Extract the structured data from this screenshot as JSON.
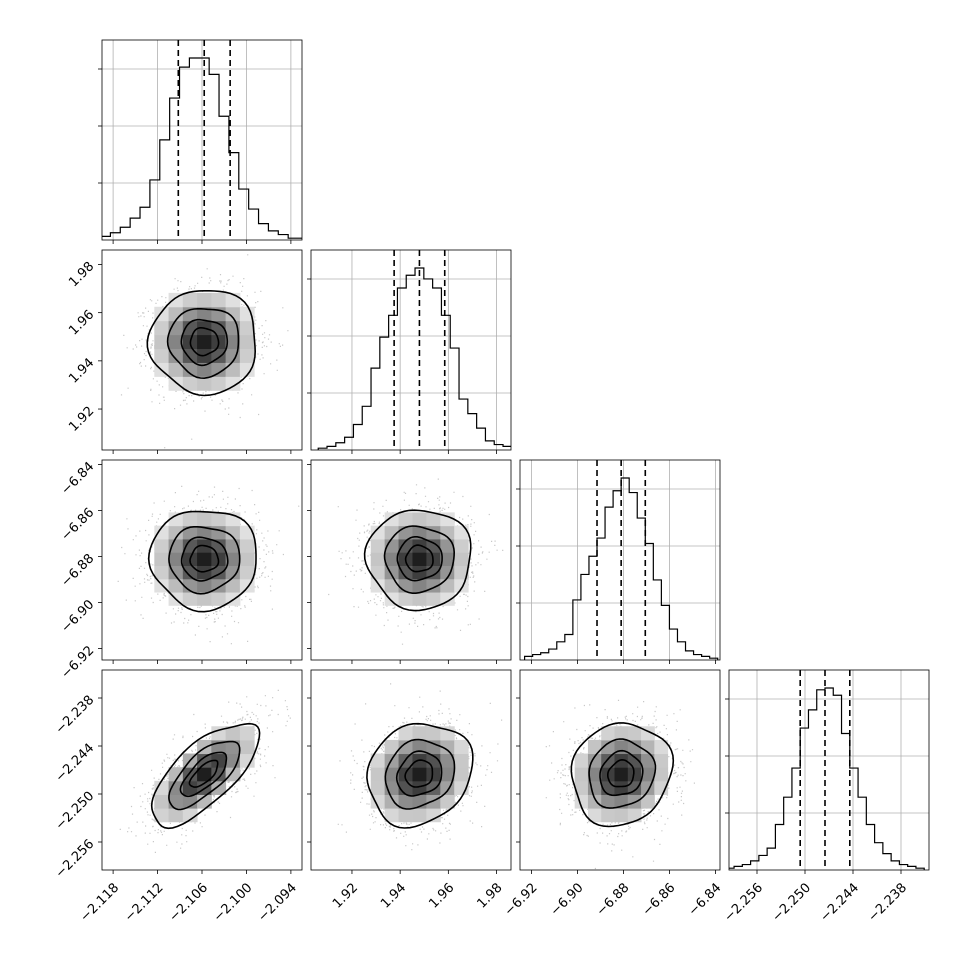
{
  "chart_data": {
    "type": "corner",
    "params": [
      {
        "xlim": [
          -2.1195,
          -2.0925
        ],
        "ticks": [
          -2.118,
          -2.112,
          -2.106,
          -2.1,
          -2.094
        ],
        "tick_labels": [
          "−2.118",
          "−2.112",
          "−2.106",
          "−2.100",
          "−2.094"
        ],
        "mean": -2.1057,
        "std": 0.0035,
        "quantiles": [
          -2.1092,
          -2.1057,
          -2.1022
        ],
        "hist": [
          2,
          4,
          7,
          12,
          18,
          33,
          55,
          78,
          95,
          100,
          100,
          91,
          68,
          48,
          28,
          17,
          9,
          5,
          3,
          1,
          1
        ]
      },
      {
        "xlim": [
          1.903,
          1.986
        ],
        "ticks": [
          1.92,
          1.94,
          1.96,
          1.98
        ],
        "tick_labels": [
          "1.92",
          "1.94",
          "1.96",
          "1.98"
        ],
        "mean": 1.948,
        "std": 0.0105,
        "quantiles": [
          1.9375,
          1.948,
          1.9585
        ],
        "hist": [
          1,
          2,
          4,
          7,
          14,
          24,
          45,
          62,
          74,
          89,
          96,
          100,
          94,
          89,
          74,
          56,
          28,
          20,
          12,
          5,
          3,
          2,
          1
        ]
      },
      {
        "xlim": [
          -6.925,
          -6.838
        ],
        "ticks": [
          -6.92,
          -6.9,
          -6.88,
          -6.86,
          -6.84
        ],
        "tick_labels": [
          "−6.92",
          "−6.90",
          "−6.88",
          "−6.86",
          "−6.84"
        ],
        "mean": -6.881,
        "std": 0.0105,
        "quantiles": [
          -6.8915,
          -6.881,
          -6.8705
        ],
        "hist": [
          2,
          3,
          4,
          6,
          10,
          14,
          33,
          47,
          57,
          67,
          84,
          93,
          100,
          92,
          78,
          64,
          44,
          30,
          17,
          10,
          5,
          3,
          2,
          1
        ]
      },
      {
        "xlim": [
          -2.2595,
          -2.2345
        ],
        "ticks": [
          -2.256,
          -2.25,
          -2.244,
          -2.238
        ],
        "tick_labels": [
          "−2.256",
          "−2.250",
          "−2.244",
          "−2.238"
        ],
        "mean": -2.2475,
        "std": 0.0031,
        "quantiles": [
          -2.2506,
          -2.2475,
          -2.2444
        ],
        "hist": [
          1,
          2,
          3,
          5,
          8,
          12,
          25,
          40,
          56,
          78,
          88,
          99,
          100,
          96,
          75,
          56,
          40,
          25,
          15,
          9,
          5,
          3,
          2,
          1
        ]
      }
    ],
    "correlations": {
      "1-0": 0.0,
      "2-0": 0.0,
      "2-1": 0.0,
      "3-0": 0.7,
      "3-1": 0.15,
      "3-2": 0.1
    },
    "contour_levels_sigma": [
      0.5,
      1.0,
      1.5,
      2.0
    ],
    "grid": true,
    "colors": {
      "line": "#000000",
      "grid": "#b0b0b0",
      "points": "#9a9a9a",
      "density": "#000000"
    }
  }
}
